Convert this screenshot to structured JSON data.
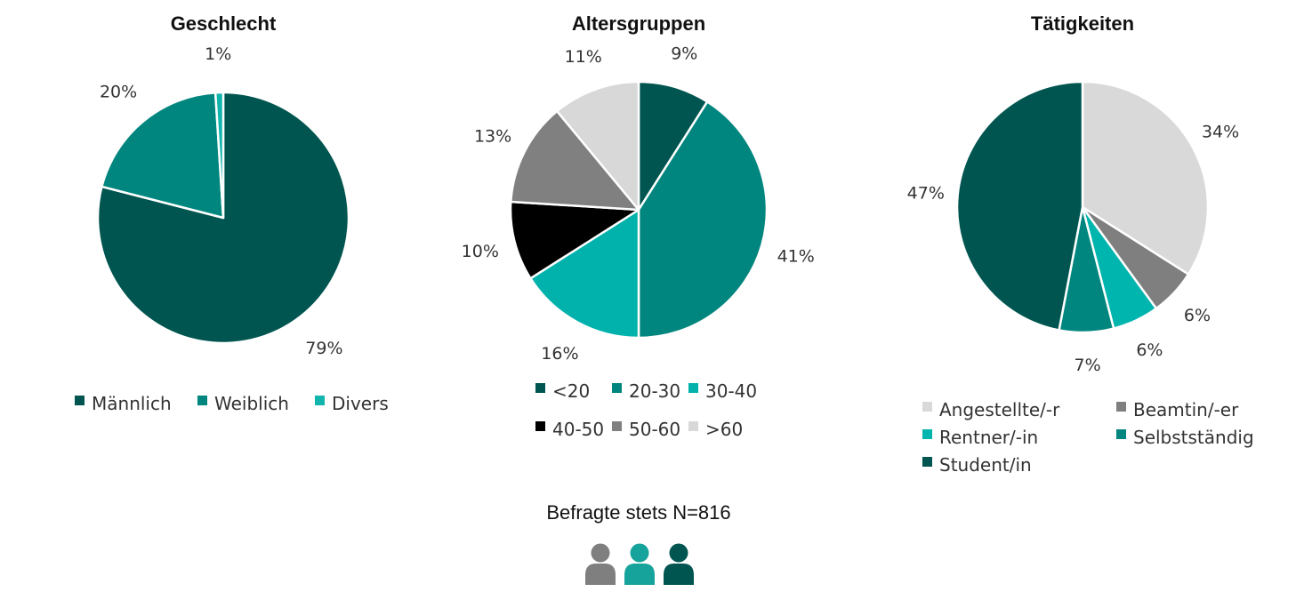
{
  "chart_data": [
    {
      "type": "pie",
      "title": "Geschlecht",
      "categories": [
        "Männlich",
        "Weiblich",
        "Divers"
      ],
      "values": [
        79,
        20,
        1
      ],
      "labels": [
        "79%",
        "20%",
        "1%"
      ],
      "colors": [
        "#005550",
        "#00867e",
        "#12b5ad"
      ],
      "legend_position": "bottom"
    },
    {
      "type": "pie",
      "title": "Altersgruppen",
      "categories": [
        "<20",
        "20-30",
        "30-40",
        "40-50",
        "50-60",
        ">60"
      ],
      "values": [
        9,
        41,
        16,
        10,
        13,
        11
      ],
      "labels": [
        "9%",
        "41%",
        "16%",
        "10%",
        "13%",
        "11%"
      ],
      "colors": [
        "#005550",
        "#00867e",
        "#00b2ab",
        "#000000",
        "#808080",
        "#d8d8d8"
      ],
      "legend_position": "bottom"
    },
    {
      "type": "pie",
      "title": "Tätigkeiten",
      "categories": [
        "Angestellte/-r",
        "Beamtin/-er",
        "Rentner/-in",
        "Selbstständig",
        "Student/in"
      ],
      "values": [
        34,
        6,
        6,
        7,
        47
      ],
      "labels": [
        "34%",
        "6%",
        "6%",
        "7%",
        "47%"
      ],
      "colors": [
        "#d9d9d9",
        "#7f7f7f",
        "#00b5ad",
        "#00867e",
        "#005550"
      ],
      "legend_position": "bottom"
    }
  ],
  "footer": {
    "text": "Befragte stets N=816",
    "icon_colors": [
      "#7f7f7f",
      "#16a39b",
      "#005550"
    ]
  }
}
